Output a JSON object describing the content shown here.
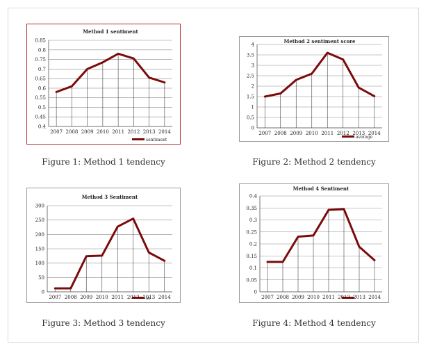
{
  "colors": {
    "line": "#7b0a0a",
    "grid": "#8c8c8c",
    "frame_fig1": "#b03030",
    "frame": "#9a9a9a"
  },
  "figures": [
    {
      "caption": "Figure 1: Method 1 tendency",
      "chart_data": {
        "type": "line",
        "title": "Method 1 sentiment",
        "categories": [
          "2007",
          "2008",
          "2009",
          "2010",
          "2011",
          "2012",
          "2013",
          "2014"
        ],
        "series": [
          {
            "name": "sentiment",
            "values": [
              0.58,
              0.61,
              0.7,
              0.735,
              0.78,
              0.755,
              0.655,
              0.63
            ]
          }
        ],
        "ylim": [
          0.4,
          0.85
        ],
        "yticks": [
          "0.85",
          "0.8",
          "0.75",
          "0.7",
          "0.65",
          "0.6",
          "0.55",
          "0.5",
          "0.45",
          "0.4"
        ],
        "grid": true,
        "legend": "bottom-right"
      }
    },
    {
      "caption": "Figure 2: Method 2 tendency",
      "chart_data": {
        "type": "line",
        "title": "Method 2 sentiment score",
        "categories": [
          "2007",
          "2008",
          "2009",
          "2010",
          "2011",
          "2012",
          "2013",
          "2014"
        ],
        "series": [
          {
            "name": "average",
            "values": [
              1.5,
              1.65,
              2.3,
              2.6,
              3.6,
              3.28,
              1.93,
              1.52
            ]
          }
        ],
        "ylim": [
          0,
          4
        ],
        "yticks": [
          "4",
          "3.5",
          "3",
          "2.5",
          "2",
          "1.5",
          "1",
          "0.5",
          "0"
        ],
        "grid": true,
        "legend": "bottom-right"
      }
    },
    {
      "caption": "Figure 3: Method 3 tendency",
      "chart_data": {
        "type": "line",
        "title": "Method 3 Sentiment",
        "categories": [
          "2007",
          "2008",
          "2009",
          "2010",
          "2011",
          "2012",
          "2013",
          "2014"
        ],
        "series": [
          {
            "name": "se",
            "values": [
              12,
              12,
              124,
              126,
              227,
              255,
              137,
              108
            ]
          }
        ],
        "ylim": [
          0,
          300
        ],
        "yticks": [
          "300",
          "250",
          "200",
          "150",
          "100",
          "50",
          "0"
        ],
        "grid": true,
        "legend": "bottom-right"
      }
    },
    {
      "caption": "Figure 4: Method 4 tendency",
      "chart_data": {
        "type": "line",
        "title": "Method 4 Sentiment",
        "categories": [
          "2007",
          "2008",
          "2009",
          "2010",
          "2011",
          "2012",
          "2013",
          "2014"
        ],
        "series": [
          {
            "name": "",
            "values": [
              0.125,
              0.125,
              0.23,
              0.235,
              0.342,
              0.345,
              0.188,
              0.132
            ]
          }
        ],
        "ylim": [
          0,
          0.4
        ],
        "yticks": [
          "0.4",
          "0.35",
          "0.3",
          "0.25",
          "0.2",
          "0.15",
          "0.1",
          "0.05",
          "0"
        ],
        "grid": true,
        "legend": "bottom-right"
      }
    }
  ]
}
